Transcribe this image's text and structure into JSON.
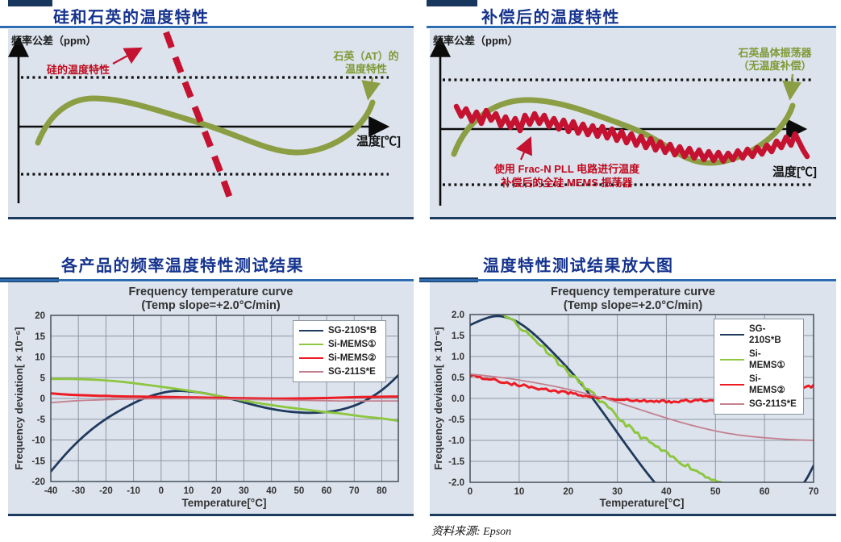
{
  "page": {
    "background": "#ffffff",
    "source_note": "资料来源: Epson"
  },
  "colors": {
    "panel_bg": "#dce3ed",
    "title_navy": "#15338e",
    "underline_blue": "#2e6cb2",
    "border_navy": "#1c3b5e",
    "diagram_green": "#8c9e44",
    "diagram_red": "#c41230",
    "grid_gray": "#8e97a3",
    "series_navy": "#1f3a5c",
    "series_green": "#8dc63f",
    "series_red": "#ed1c24",
    "series_rose": "#c4808e"
  },
  "diagrams": {
    "silicon_quartz": {
      "title": "硅和石英的温度特性",
      "y_axis_label": "频率公差（ppm）",
      "x_axis_label": "温度[℃]",
      "silicon_curve_label": "硅的温度特性",
      "quartz_label_line1": "石英（AT）的",
      "quartz_label_line2": "温度特性"
    },
    "compensated": {
      "title": "补偿后的温度特性",
      "y_axis_label": "频率公差（ppm）",
      "x_axis_label": "温度[℃]",
      "quartz_label_line1": "石英晶体振荡器",
      "quartz_label_line2": "（无温度补偿）",
      "mems_label_line1": "使用 Frac-N PLL 电路进行温度",
      "mems_label_line2": "补偿后的全硅 MEMS 振荡器"
    }
  },
  "section_titles": {
    "bottom_left": "各产品的频率温度特性测试结果",
    "bottom_right": "温度特性测试结果放大图"
  },
  "chart_data": [
    {
      "id": "full-range-chart",
      "type": "line",
      "title": "Frequency temperature curve",
      "subtitle": "(Temp slope=+2.0°C/min)",
      "xlabel": "Temperature[°C]",
      "ylabel": "Frequency deviation[ × 10⁻⁶]",
      "xlim": [
        -40,
        86
      ],
      "ylim": [
        -20,
        20
      ],
      "xticks": [
        -40,
        -30,
        -20,
        -10,
        0,
        10,
        20,
        30,
        40,
        50,
        60,
        70,
        80
      ],
      "xtick_labels": [
        "-40",
        "-30",
        "-20",
        "-10",
        "0",
        "10",
        "20",
        "30",
        "40",
        "50",
        "60",
        "70",
        "80"
      ],
      "yticks": [
        20,
        15,
        10,
        5,
        0,
        -5,
        -10,
        -15,
        -20
      ],
      "ytick_labels": [
        "20",
        "15",
        "10",
        "5",
        "0",
        "-5",
        "-10",
        "-15",
        "-20"
      ],
      "grid": true,
      "legend_position": "top-right",
      "series": [
        {
          "name": "SG-210S*B",
          "color": "#1f3a5c",
          "width": 2.8,
          "points": [
            [
              -40,
              -17.6
            ],
            [
              -35,
              -13.6
            ],
            [
              -30,
              -10.2
            ],
            [
              -25,
              -7.3
            ],
            [
              -20,
              -4.9
            ],
            [
              -15,
              -2.9
            ],
            [
              -10,
              -1.1
            ],
            [
              -5,
              0.4
            ],
            [
              0,
              1.3
            ],
            [
              3,
              1.7
            ],
            [
              6,
              1.85
            ],
            [
              10,
              1.75
            ],
            [
              15,
              1.35
            ],
            [
              20,
              0.7
            ],
            [
              25,
              0.0
            ],
            [
              30,
              -0.95
            ],
            [
              35,
              -1.8
            ],
            [
              40,
              -2.55
            ],
            [
              45,
              -3.1
            ],
            [
              50,
              -3.4
            ],
            [
              55,
              -3.5
            ],
            [
              60,
              -3.3
            ],
            [
              65,
              -2.8
            ],
            [
              70,
              -1.8
            ],
            [
              74,
              -0.6
            ],
            [
              78,
              1.0
            ],
            [
              82,
              3.0
            ],
            [
              86,
              5.6
            ]
          ]
        },
        {
          "name": "Si-MEMS①",
          "color": "#8dc63f",
          "width": 2.8,
          "points": [
            [
              -40,
              4.7
            ],
            [
              -35,
              4.7
            ],
            [
              -30,
              4.65
            ],
            [
              -25,
              4.55
            ],
            [
              -20,
              4.35
            ],
            [
              -15,
              4.05
            ],
            [
              -10,
              3.7
            ],
            [
              -5,
              3.25
            ],
            [
              0,
              2.8
            ],
            [
              5,
              2.35
            ],
            [
              10,
              1.9
            ],
            [
              15,
              1.3
            ],
            [
              20,
              0.7
            ],
            [
              25,
              0.1
            ],
            [
              30,
              -0.5
            ],
            [
              35,
              -1.1
            ],
            [
              40,
              -1.6
            ],
            [
              45,
              -2.1
            ],
            [
              50,
              -2.5
            ],
            [
              55,
              -2.9
            ],
            [
              60,
              -3.3
            ],
            [
              65,
              -3.6
            ],
            [
              70,
              -4.1
            ],
            [
              75,
              -4.5
            ],
            [
              80,
              -4.8
            ],
            [
              86,
              -5.4
            ]
          ]
        },
        {
          "name": "Si-MEMS②",
          "color": "#ed1c24",
          "width": 3,
          "points": [
            [
              -40,
              1.2
            ],
            [
              -35,
              0.95
            ],
            [
              -30,
              0.8
            ],
            [
              -25,
              0.7
            ],
            [
              -20,
              0.6
            ],
            [
              -15,
              0.5
            ],
            [
              -10,
              0.45
            ],
            [
              -5,
              0.4
            ],
            [
              0,
              0.35
            ],
            [
              5,
              0.3
            ],
            [
              10,
              0.25
            ],
            [
              15,
              0.2
            ],
            [
              20,
              0.15
            ],
            [
              25,
              0.1
            ],
            [
              30,
              0.05
            ],
            [
              35,
              0.0
            ],
            [
              40,
              -0.05
            ],
            [
              45,
              -0.05
            ],
            [
              50,
              0.0
            ],
            [
              55,
              0.05
            ],
            [
              60,
              0.1
            ],
            [
              65,
              0.2
            ],
            [
              70,
              0.3
            ],
            [
              75,
              0.35
            ],
            [
              80,
              0.4
            ],
            [
              86,
              0.45
            ]
          ]
        },
        {
          "name": "SG-211S*E",
          "color": "#c4808e",
          "width": 1.8,
          "points": [
            [
              -40,
              -1.0
            ],
            [
              -35,
              -0.75
            ],
            [
              -30,
              -0.55
            ],
            [
              -25,
              -0.4
            ],
            [
              -20,
              -0.3
            ],
            [
              -15,
              -0.2
            ],
            [
              -10,
              -0.15
            ],
            [
              -5,
              -0.1
            ],
            [
              0,
              -0.05
            ],
            [
              5,
              -0.05
            ],
            [
              10,
              -0.05
            ],
            [
              15,
              -0.1
            ],
            [
              20,
              -0.15
            ],
            [
              25,
              -0.2
            ],
            [
              30,
              -0.25
            ],
            [
              35,
              -0.3
            ],
            [
              40,
              -0.35
            ],
            [
              45,
              -0.4
            ],
            [
              50,
              -0.45
            ],
            [
              55,
              -0.5
            ],
            [
              60,
              -0.55
            ],
            [
              65,
              -0.6
            ],
            [
              70,
              -0.6
            ],
            [
              75,
              -0.6
            ],
            [
              80,
              -0.6
            ],
            [
              86,
              -0.6
            ]
          ]
        }
      ]
    },
    {
      "id": "zoomed-chart",
      "type": "line",
      "title": "Frequency temperature curve",
      "subtitle": "(Temp slope=+2.0°C/min)",
      "xlabel": "Temperature[°C]",
      "ylabel": "Frequency deviation[ × 10⁻⁶]",
      "xlim": [
        0,
        70
      ],
      "ylim": [
        -2,
        2
      ],
      "xticks": [
        0,
        10,
        20,
        30,
        40,
        50,
        60,
        70
      ],
      "xtick_labels": [
        "0",
        "10",
        "20",
        "30",
        "40",
        "50",
        "60",
        "70"
      ],
      "yticks": [
        2.0,
        1.5,
        1.0,
        0.5,
        0.0,
        -0.5,
        -1.0,
        -1.5,
        -2.0
      ],
      "ytick_labels": [
        "2.0",
        "1.5",
        "1.0",
        "0.5",
        "0.0",
        "-0.5",
        "-1.0",
        "-1.5",
        "-2.0"
      ],
      "grid": true,
      "legend_position": "top-right",
      "series": [
        {
          "name": "SG-210S*B",
          "color": "#1f3a5c",
          "width": 2.8,
          "points": [
            [
              0,
              1.75
            ],
            [
              2,
              1.86
            ],
            [
              4,
              1.94
            ],
            [
              5.5,
              1.97
            ],
            [
              7,
              1.95
            ],
            [
              9,
              1.87
            ],
            [
              11,
              1.73
            ],
            [
              13,
              1.54
            ],
            [
              15,
              1.32
            ],
            [
              17,
              1.08
            ],
            [
              19,
              0.84
            ],
            [
              21,
              0.58
            ],
            [
              23,
              0.3
            ],
            [
              25,
              0.0
            ],
            [
              27,
              -0.32
            ],
            [
              29,
              -0.65
            ],
            [
              31,
              -0.98
            ],
            [
              33,
              -1.3
            ],
            [
              35,
              -1.62
            ],
            [
              37,
              -1.92
            ],
            [
              39,
              -2.2
            ],
            [
              42,
              -2.6
            ],
            [
              46,
              -3.05
            ],
            [
              50,
              -3.35
            ],
            [
              55,
              -3.5
            ],
            [
              60,
              -3.3
            ],
            [
              63,
              -2.95
            ],
            [
              65,
              -2.6
            ],
            [
              67,
              -2.15
            ],
            [
              68.5,
              -1.95
            ],
            [
              70,
              -1.6
            ]
          ]
        },
        {
          "name": "Si-MEMS①",
          "color": "#8dc63f",
          "width": 3,
          "noise": {
            "amp": 0.055,
            "step": 0.6,
            "seed": 11
          },
          "points": [
            [
              0,
              2.8
            ],
            [
              3,
              2.5
            ],
            [
              5,
              2.25
            ],
            [
              6.5,
              2.05
            ],
            [
              8,
              1.92
            ],
            [
              10,
              1.72
            ],
            [
              12,
              1.52
            ],
            [
              14,
              1.32
            ],
            [
              16,
              1.1
            ],
            [
              18,
              0.86
            ],
            [
              20,
              0.62
            ],
            [
              22,
              0.42
            ],
            [
              24,
              0.2
            ],
            [
              26,
              0.0
            ],
            [
              28,
              -0.22
            ],
            [
              30,
              -0.44
            ],
            [
              32,
              -0.64
            ],
            [
              34,
              -0.84
            ],
            [
              36,
              -1.0
            ],
            [
              38,
              -1.16
            ],
            [
              40,
              -1.32
            ],
            [
              42,
              -1.46
            ],
            [
              44,
              -1.58
            ],
            [
              46,
              -1.72
            ],
            [
              48,
              -1.84
            ],
            [
              50,
              -1.96
            ],
            [
              51.5,
              -2.08
            ]
          ]
        },
        {
          "name": "Si-MEMS②",
          "color": "#ed1c24",
          "width": 3,
          "noise": {
            "amp": 0.035,
            "step": 0.5,
            "seed": 5
          },
          "points": [
            [
              0,
              0.56
            ],
            [
              3,
              0.48
            ],
            [
              6,
              0.41
            ],
            [
              9,
              0.34
            ],
            [
              12,
              0.28
            ],
            [
              15,
              0.22
            ],
            [
              18,
              0.16
            ],
            [
              21,
              0.11
            ],
            [
              24,
              0.06
            ],
            [
              27,
              0.01
            ],
            [
              30,
              -0.03
            ],
            [
              33,
              -0.05
            ],
            [
              36,
              -0.07
            ],
            [
              39,
              -0.07
            ],
            [
              42,
              -0.07
            ],
            [
              45,
              -0.06
            ],
            [
              48,
              -0.04
            ],
            [
              51,
              -0.01
            ],
            [
              54,
              0.02
            ],
            [
              57,
              0.06
            ],
            [
              60,
              0.11
            ],
            [
              63,
              0.16
            ],
            [
              66,
              0.22
            ],
            [
              70,
              0.29
            ]
          ]
        },
        {
          "name": "SG-211S*E",
          "color": "#c4808e",
          "width": 1.8,
          "points": [
            [
              0,
              0.58
            ],
            [
              5,
              0.52
            ],
            [
              10,
              0.44
            ],
            [
              15,
              0.34
            ],
            [
              20,
              0.22
            ],
            [
              25,
              0.08
            ],
            [
              30,
              -0.09
            ],
            [
              35,
              -0.28
            ],
            [
              40,
              -0.47
            ],
            [
              45,
              -0.64
            ],
            [
              50,
              -0.78
            ],
            [
              55,
              -0.88
            ],
            [
              60,
              -0.94
            ],
            [
              65,
              -0.98
            ],
            [
              70,
              -1.0
            ]
          ]
        }
      ]
    }
  ]
}
